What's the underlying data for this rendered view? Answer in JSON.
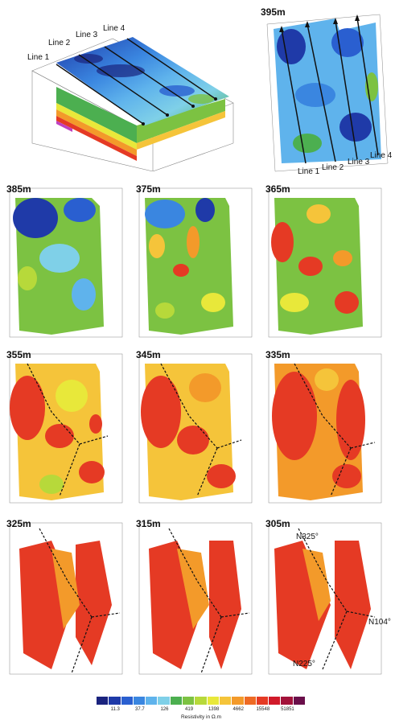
{
  "overview": {
    "lines": [
      "Line 1",
      "Line 2",
      "Line 3",
      "Line 4"
    ]
  },
  "topview": {
    "depth": "395m",
    "lines": [
      "Line 1",
      "Line 2",
      "Line 3",
      "Line 4"
    ]
  },
  "slices": [
    {
      "depth": "385m"
    },
    {
      "depth": "375m"
    },
    {
      "depth": "365m"
    },
    {
      "depth": "355m"
    },
    {
      "depth": "345m"
    },
    {
      "depth": "335m"
    },
    {
      "depth": "325m"
    },
    {
      "depth": "315m"
    },
    {
      "depth": "305m"
    }
  ],
  "annotations": {
    "n325": "N325°",
    "n104": "N104°",
    "n225": "N225°"
  },
  "legend": {
    "title": "Resistivity in Ω.m",
    "ticks": [
      "11.3",
      "37.7",
      "126",
      "419",
      "1398",
      "4662",
      "15548",
      "51851"
    ],
    "colors": [
      "#1a237e",
      "#1f3aa8",
      "#2a5fd0",
      "#3a86e0",
      "#5fb3ec",
      "#7fd0e8",
      "#4caf50",
      "#7cc242",
      "#b7d93a",
      "#e8e83a",
      "#f5c43a",
      "#f39a2a",
      "#ee6a24",
      "#e53a24",
      "#d11a2a",
      "#a3123a",
      "#6a0f4a"
    ]
  }
}
